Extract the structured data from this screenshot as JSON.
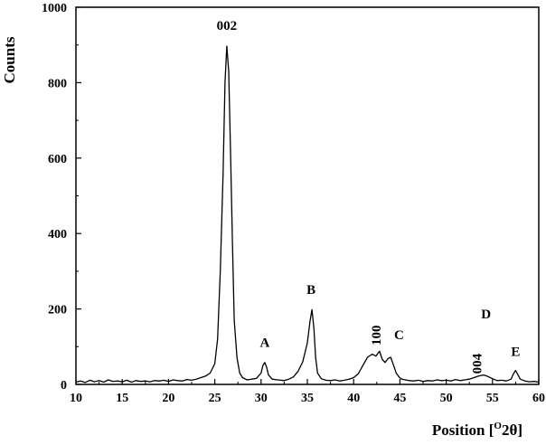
{
  "chart_data": {
    "type": "line",
    "title": "",
    "xlabel_prefix": "Position [",
    "xlabel_sup": "O",
    "xlabel_suffix": "2θ]",
    "ylabel": "Counts",
    "xlim": [
      10,
      60
    ],
    "ylim": [
      0,
      1000
    ],
    "x_ticks": [
      10,
      15,
      20,
      25,
      30,
      35,
      40,
      45,
      50,
      55,
      60
    ],
    "y_ticks": [
      0,
      200,
      400,
      600,
      800,
      1000
    ],
    "grid": false,
    "legend": "none",
    "line_color": "#000000",
    "series": [
      {
        "x": [
          10,
          10.5,
          11,
          11.5,
          12,
          12.5,
          13,
          13.5,
          14,
          14.5,
          15,
          15.5,
          16,
          16.5,
          17,
          17.5,
          18,
          18.5,
          19,
          19.5,
          20,
          20.5,
          21,
          21.5,
          22,
          22.5,
          23,
          23.5,
          24,
          24.5,
          25,
          25.3,
          25.6,
          25.9,
          26.1,
          26.3,
          26.5,
          26.7,
          26.9,
          27.1,
          27.4,
          27.7,
          28,
          28.5,
          29,
          29.5,
          30,
          30.2,
          30.4,
          30.6,
          30.8,
          31.2,
          31.8,
          32.5,
          33,
          33.5,
          34,
          34.5,
          35,
          35.3,
          35.5,
          35.7,
          35.9,
          36.1,
          36.5,
          37,
          37.5,
          38,
          38.5,
          39,
          39.5,
          40,
          40.5,
          41,
          41.5,
          42,
          42.4,
          42.8,
          43.1,
          43.4,
          43.7,
          44,
          44.3,
          44.6,
          44.9,
          45.2,
          45.6,
          46,
          46.5,
          47,
          47.5,
          48,
          48.5,
          49,
          49.5,
          50,
          50.5,
          51,
          51.5,
          52,
          52.5,
          53,
          53.5,
          54,
          54.3,
          54.6,
          55,
          55.5,
          56,
          56.5,
          57,
          57.3,
          57.5,
          57.7,
          58,
          58.5,
          59,
          59.5,
          60
        ],
        "y": [
          6,
          9,
          5,
          11,
          7,
          10,
          6,
          12,
          8,
          9,
          7,
          11,
          6,
          10,
          8,
          9,
          7,
          10,
          9,
          11,
          8,
          12,
          10,
          9,
          13,
          11,
          14,
          18,
          22,
          30,
          55,
          120,
          300,
          560,
          800,
          897,
          830,
          620,
          380,
          170,
          70,
          30,
          18,
          12,
          14,
          16,
          30,
          50,
          58,
          46,
          25,
          14,
          12,
          10,
          14,
          20,
          35,
          60,
          110,
          170,
          198,
          150,
          70,
          30,
          15,
          11,
          10,
          12,
          9,
          11,
          14,
          18,
          28,
          50,
          72,
          80,
          75,
          88,
          66,
          58,
          68,
          72,
          52,
          30,
          20,
          14,
          12,
          10,
          9,
          11,
          8,
          10,
          9,
          12,
          10,
          11,
          9,
          13,
          10,
          12,
          14,
          18,
          22,
          25,
          23,
          20,
          15,
          10,
          11,
          9,
          14,
          30,
          37,
          28,
          14,
          9,
          7,
          8,
          6
        ]
      }
    ],
    "annotations": [
      {
        "label": "002",
        "x": 26.3,
        "y": 940,
        "rotate": false
      },
      {
        "label": "A",
        "x": 30.4,
        "y": 100,
        "rotate": false
      },
      {
        "label": "B",
        "x": 35.4,
        "y": 240,
        "rotate": false
      },
      {
        "label": "100",
        "x": 42.9,
        "y": 130,
        "rotate": true
      },
      {
        "label": "C",
        "x": 44.9,
        "y": 120,
        "rotate": false
      },
      {
        "label": "D",
        "x": 54.3,
        "y": 175,
        "rotate": false
      },
      {
        "label": "004",
        "x": 53.8,
        "y": 55,
        "rotate": true
      },
      {
        "label": "E",
        "x": 57.5,
        "y": 75,
        "rotate": false
      }
    ]
  }
}
